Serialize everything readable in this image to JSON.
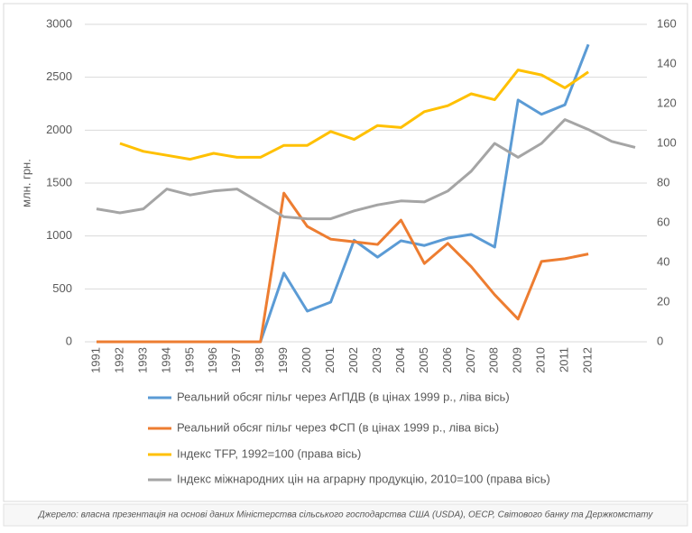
{
  "chart_data": {
    "type": "line",
    "categories": [
      "1991",
      "1992",
      "1993",
      "1994",
      "1995",
      "1996",
      "1997",
      "1998",
      "1999",
      "2000",
      "2001",
      "2002",
      "2003",
      "2004",
      "2005",
      "2006",
      "2007",
      "2008",
      "2009",
      "2010",
      "2011",
      "2012",
      null,
      null
    ],
    "ylabel": "млн. грн.",
    "ylim": [
      0,
      3000
    ],
    "yticks": [
      0,
      500,
      1000,
      1500,
      2000,
      2500,
      3000
    ],
    "y2lim": [
      0,
      160
    ],
    "y2ticks": [
      0,
      20,
      40,
      60,
      80,
      100,
      120,
      140,
      160
    ],
    "series": [
      {
        "name": "Реальний обсяг пільг через АгПДВ (в цінах 1999 р., ліва вісь)",
        "color": "#5b9bd5",
        "values": [
          0,
          0,
          0,
          0,
          0,
          0,
          0,
          0,
          650,
          290,
          375,
          960,
          800,
          955,
          910,
          980,
          1015,
          895,
          2285,
          2150,
          2240,
          2810,
          null,
          null
        ]
      },
      {
        "name": "Реальний обсяг пільг через ФСП (в цінах 1999 р., ліва вісь)",
        "color": "#ed7d31",
        "values": [
          0,
          0,
          0,
          0,
          0,
          0,
          0,
          0,
          1405,
          1090,
          970,
          945,
          920,
          1150,
          740,
          930,
          710,
          445,
          215,
          760,
          785,
          830,
          null,
          null
        ]
      },
      {
        "name": "Індекс TFP, 1992=100 (права вісь)",
        "color": "#ffc000",
        "axis": "y2",
        "values": [
          null,
          100,
          96,
          94,
          92,
          95,
          93,
          93,
          99,
          99,
          106,
          102,
          109,
          108,
          116,
          119,
          125,
          122,
          137,
          134.5,
          128,
          136,
          null,
          null
        ]
      },
      {
        "name": "Індекс міжнародних цін на аграрну продукцію, 2010=100 (права вісь)",
        "color": "#a5a5a5",
        "axis": "y2",
        "values": [
          67,
          65,
          67,
          77,
          74,
          76,
          77,
          70,
          63,
          62,
          62,
          66,
          69,
          71,
          70.5,
          76,
          86,
          100,
          93,
          100,
          112,
          107,
          101,
          98
        ]
      }
    ],
    "source": "Джерело: власна презентація на основі даних Міністерства сільського господарства США (USDA), OECP, Світового банку та Держкомстату"
  }
}
